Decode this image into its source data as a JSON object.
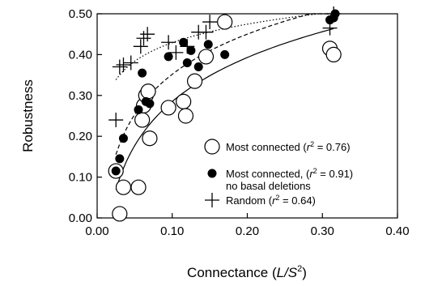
{
  "chart_data": {
    "type": "scatter",
    "title": "",
    "xlabel_prefix": "Connectance (",
    "xlabel_italic": "L/S",
    "xlabel_sup": "2",
    "xlabel_suffix": ")",
    "ylabel": "Robustness",
    "xlim": [
      0.0,
      0.4
    ],
    "ylim": [
      0.0,
      0.5
    ],
    "xticks": [
      "0.00",
      "0.10",
      "0.20",
      "0.30",
      "0.40"
    ],
    "yticks": [
      "0.00",
      "0.10",
      "0.20",
      "0.30",
      "0.40",
      "0.50"
    ],
    "legend_position": "bottom-right",
    "series": [
      {
        "name": "Most connected",
        "r2_label": "r",
        "r2_value": " = 0.76)",
        "marker": "open-circle",
        "trend": "solid",
        "points": [
          [
            0.025,
            0.115
          ],
          [
            0.03,
            0.01
          ],
          [
            0.035,
            0.075
          ],
          [
            0.055,
            0.075
          ],
          [
            0.06,
            0.24
          ],
          [
            0.062,
            0.275
          ],
          [
            0.065,
            0.3
          ],
          [
            0.068,
            0.31
          ],
          [
            0.07,
            0.195
          ],
          [
            0.095,
            0.27
          ],
          [
            0.115,
            0.285
          ],
          [
            0.118,
            0.25
          ],
          [
            0.13,
            0.335
          ],
          [
            0.145,
            0.395
          ],
          [
            0.17,
            0.48
          ],
          [
            0.31,
            0.415
          ],
          [
            0.315,
            0.4
          ]
        ]
      },
      {
        "name": "Most connected,",
        "name_line2": "no basal deletions",
        "r2_label": "r",
        "r2_value": " = 0.91)",
        "marker": "filled-circle",
        "trend": "dashed",
        "points": [
          [
            0.025,
            0.115
          ],
          [
            0.03,
            0.145
          ],
          [
            0.035,
            0.195
          ],
          [
            0.055,
            0.265
          ],
          [
            0.06,
            0.355
          ],
          [
            0.065,
            0.285
          ],
          [
            0.07,
            0.28
          ],
          [
            0.095,
            0.395
          ],
          [
            0.115,
            0.43
          ],
          [
            0.12,
            0.38
          ],
          [
            0.125,
            0.41
          ],
          [
            0.135,
            0.37
          ],
          [
            0.148,
            0.425
          ],
          [
            0.17,
            0.4
          ],
          [
            0.31,
            0.485
          ],
          [
            0.315,
            0.49
          ],
          [
            0.317,
            0.5
          ]
        ]
      },
      {
        "name": "Random",
        "r2_label": "r",
        "r2_value": " = 0.64)",
        "marker": "plus",
        "trend": "dotted",
        "points": [
          [
            0.025,
            0.24
          ],
          [
            0.03,
            0.37
          ],
          [
            0.035,
            0.375
          ],
          [
            0.045,
            0.38
          ],
          [
            0.058,
            0.42
          ],
          [
            0.062,
            0.44
          ],
          [
            0.067,
            0.45
          ],
          [
            0.095,
            0.43
          ],
          [
            0.105,
            0.405
          ],
          [
            0.12,
            0.42
          ],
          [
            0.135,
            0.455
          ],
          [
            0.145,
            0.455
          ],
          [
            0.15,
            0.48
          ],
          [
            0.31,
            0.465
          ],
          [
            0.315,
            0.5
          ]
        ]
      }
    ]
  }
}
